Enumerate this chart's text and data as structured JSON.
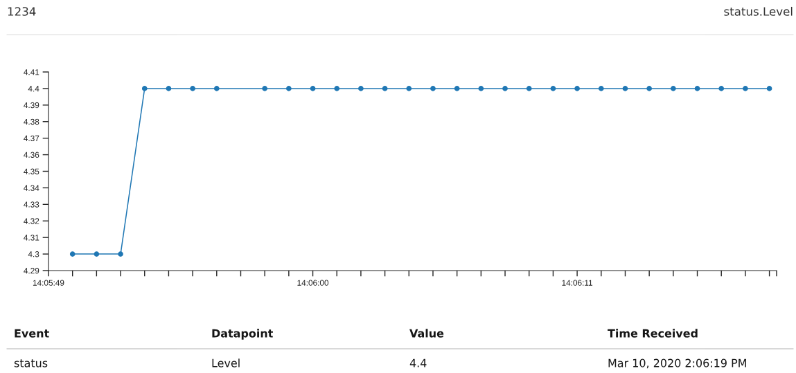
{
  "chart_data": {
    "type": "line",
    "title": "1234",
    "subtitle": "status.Level",
    "x": [
      "2020-03-10T14:05:50",
      "2020-03-10T14:05:51",
      "2020-03-10T14:05:52",
      "2020-03-10T14:05:53",
      "2020-03-10T14:05:54",
      "2020-03-10T14:05:55",
      "2020-03-10T14:05:56",
      "2020-03-10T14:05:58",
      "2020-03-10T14:05:59",
      "2020-03-10T14:06:00",
      "2020-03-10T14:06:01",
      "2020-03-10T14:06:02",
      "2020-03-10T14:06:03",
      "2020-03-10T14:06:04",
      "2020-03-10T14:06:05",
      "2020-03-10T14:06:06",
      "2020-03-10T14:06:07",
      "2020-03-10T14:06:08",
      "2020-03-10T14:06:09",
      "2020-03-10T14:06:10",
      "2020-03-10T14:06:11",
      "2020-03-10T14:06:12",
      "2020-03-10T14:06:13",
      "2020-03-10T14:06:14",
      "2020-03-10T14:06:15",
      "2020-03-10T14:06:16",
      "2020-03-10T14:06:17",
      "2020-03-10T14:06:18",
      "2020-03-10T14:06:19"
    ],
    "series": [
      {
        "color": "#1f77b4",
        "values": [
          4.3,
          4.3,
          4.3,
          4.4,
          4.4,
          4.4,
          4.4,
          4.4,
          4.4,
          4.4,
          4.4,
          4.4,
          4.4,
          4.4,
          4.4,
          4.4,
          4.4,
          4.4,
          4.4,
          4.4,
          4.4,
          4.4,
          4.4,
          4.4,
          4.4,
          4.4,
          4.4,
          4.4,
          4.4
        ]
      }
    ],
    "xlim": [
      "2020-03-10T14:05:49",
      "2020-03-10T14:06:19.3"
    ],
    "xticks": [
      {
        "value": "2020-03-10T14:05:49",
        "label": "14:05:49"
      },
      {
        "value": "2020-03-10T14:05:50",
        "label": null
      },
      {
        "value": "2020-03-10T14:05:51",
        "label": null
      },
      {
        "value": "2020-03-10T14:05:52",
        "label": null
      },
      {
        "value": "2020-03-10T14:05:53",
        "label": null
      },
      {
        "value": "2020-03-10T14:05:54",
        "label": null
      },
      {
        "value": "2020-03-10T14:05:55",
        "label": null
      },
      {
        "value": "2020-03-10T14:05:56",
        "label": null
      },
      {
        "value": "2020-03-10T14:05:57",
        "label": null
      },
      {
        "value": "2020-03-10T14:05:58",
        "label": null
      },
      {
        "value": "2020-03-10T14:05:59",
        "label": null
      },
      {
        "value": "2020-03-10T14:06:00",
        "label": "14:06:00"
      },
      {
        "value": "2020-03-10T14:06:01",
        "label": null
      },
      {
        "value": "2020-03-10T14:06:02",
        "label": null
      },
      {
        "value": "2020-03-10T14:06:03",
        "label": null
      },
      {
        "value": "2020-03-10T14:06:04",
        "label": null
      },
      {
        "value": "2020-03-10T14:06:05",
        "label": null
      },
      {
        "value": "2020-03-10T14:06:06",
        "label": null
      },
      {
        "value": "2020-03-10T14:06:07",
        "label": null
      },
      {
        "value": "2020-03-10T14:06:08",
        "label": null
      },
      {
        "value": "2020-03-10T14:06:09",
        "label": null
      },
      {
        "value": "2020-03-10T14:06:10",
        "label": null
      },
      {
        "value": "2020-03-10T14:06:11",
        "label": "14:06:11"
      },
      {
        "value": "2020-03-10T14:06:12",
        "label": null
      },
      {
        "value": "2020-03-10T14:06:13",
        "label": null
      },
      {
        "value": "2020-03-10T14:06:14",
        "label": null
      },
      {
        "value": "2020-03-10T14:06:15",
        "label": null
      },
      {
        "value": "2020-03-10T14:06:16",
        "label": null
      },
      {
        "value": "2020-03-10T14:06:17",
        "label": null
      },
      {
        "value": "2020-03-10T14:06:18",
        "label": null
      },
      {
        "value": "2020-03-10T14:06:19",
        "label": null
      },
      {
        "value": "2020-03-10T14:06:19.3",
        "label": null
      }
    ],
    "ylim": [
      4.29,
      4.41
    ],
    "yticks": [
      4.29,
      4.3,
      4.31,
      4.32,
      4.33,
      4.34,
      4.35,
      4.36,
      4.37,
      4.38,
      4.39,
      4.4,
      4.41
    ],
    "grid": false,
    "marker": "circle",
    "line_style": "solid",
    "annotations": [
      "Event",
      "Datapoint",
      "Value",
      "Time Received",
      "status",
      "Level",
      "4.4",
      "Mar 10, 2020 2:06:19 PM"
    ]
  }
}
